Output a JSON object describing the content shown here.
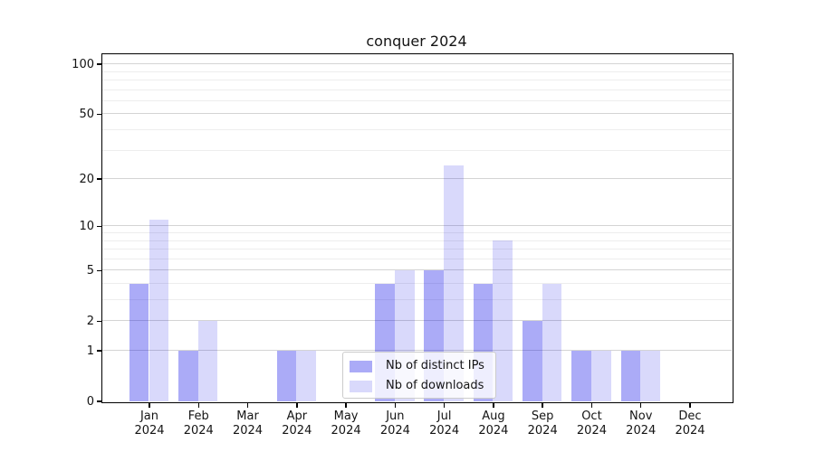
{
  "figure": {
    "title": "conquer 2024"
  },
  "chart_data": {
    "type": "bar",
    "title": "conquer 2024",
    "categories": [
      "Jan",
      "Feb",
      "Mar",
      "Apr",
      "May",
      "Jun",
      "Jul",
      "Aug",
      "Sep",
      "Oct",
      "Nov",
      "Dec"
    ],
    "year": "2024",
    "series": [
      {
        "name": "Nb of distinct IPs",
        "color": "rgba(0,0,230,0.33)",
        "solid_color": "#aaaaf7",
        "values": [
          4,
          1,
          0,
          1,
          0,
          4,
          5,
          4,
          2,
          1,
          1,
          0
        ]
      },
      {
        "name": "Nb of downloads",
        "color": "rgba(0,0,230,0.15)",
        "solid_color": "#d9d9f9",
        "values": [
          11,
          2,
          0,
          1,
          0,
          5,
          24,
          8,
          4,
          1,
          1,
          0
        ]
      }
    ],
    "xlabel": "",
    "ylabel": "",
    "yscale": "log1p",
    "ylim": [
      0,
      115
    ],
    "yticks": [
      0,
      1,
      2,
      5,
      10,
      20,
      50,
      100
    ],
    "ytick_labels": [
      "0",
      "1",
      "2",
      "5",
      "10",
      "20",
      "50",
      "100"
    ],
    "minor_yticks": [
      3,
      4,
      6,
      7,
      8,
      9,
      30,
      40,
      60,
      70,
      80,
      90
    ],
    "grid": true,
    "legend_position": "lower-center",
    "colors": {
      "grid_major": "#d4d4d4",
      "grid_minor": "#ededed",
      "spine": "#000000",
      "background": "#ffffff"
    }
  }
}
